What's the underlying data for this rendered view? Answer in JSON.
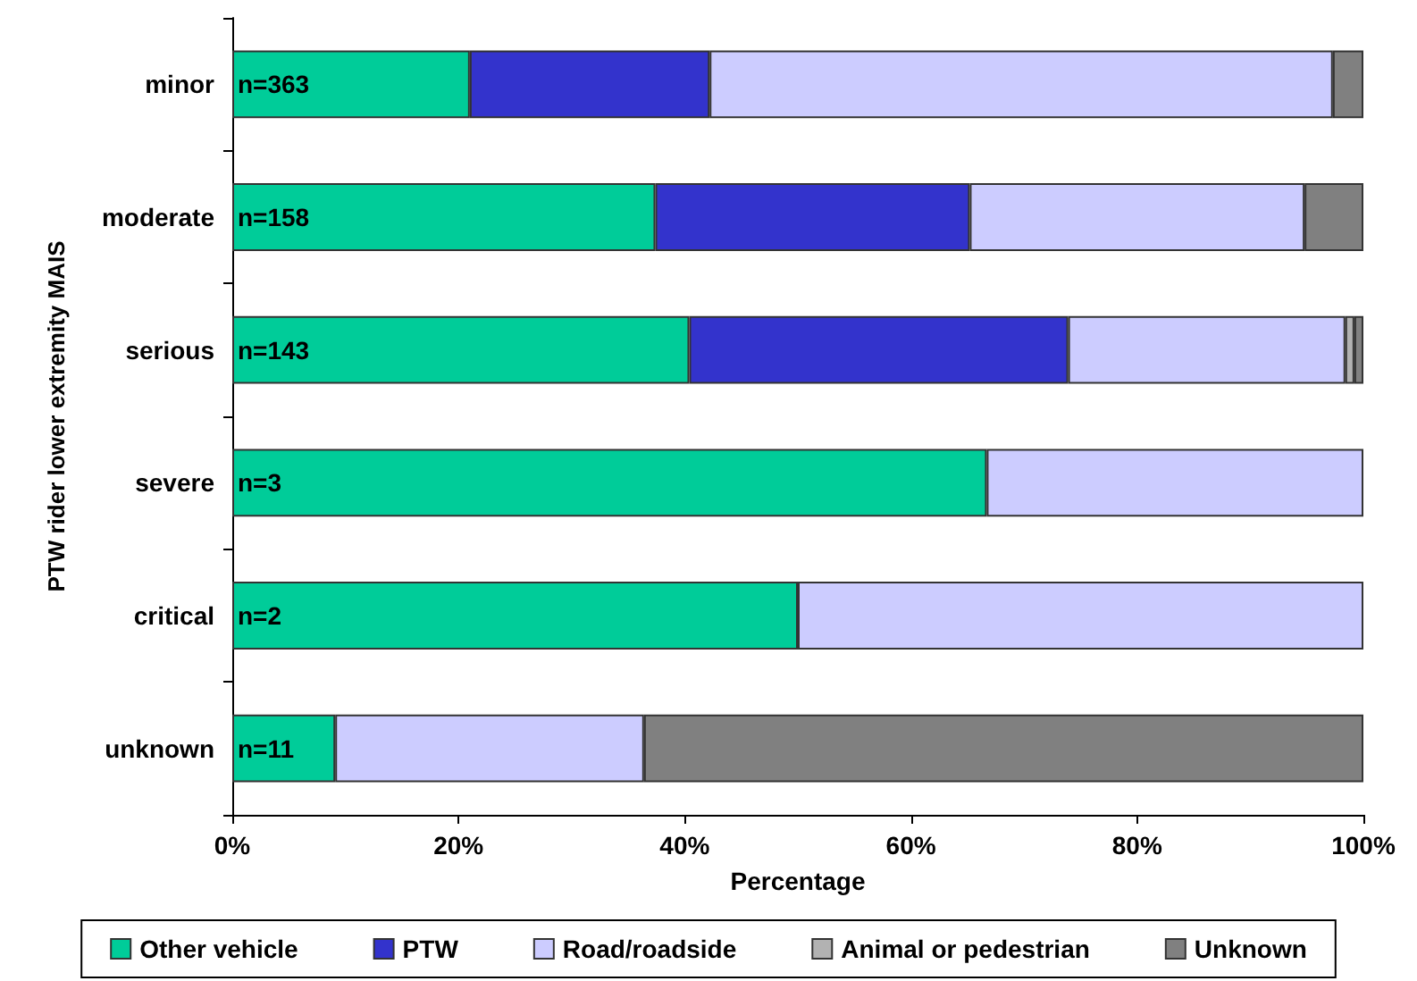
{
  "chart_data": {
    "type": "bar",
    "orientation": "horizontal",
    "stacked": true,
    "xlabel": "Percentage",
    "ylabel": "PTW rider lower extremity MAIS",
    "categories": [
      "minor",
      "moderate",
      "serious",
      "severe",
      "critical",
      "unknown"
    ],
    "series": [
      {
        "name": "Other vehicle",
        "color": "#00cc99",
        "values": [
          21.0,
          37.4,
          40.4,
          66.7,
          50.0,
          9.1
        ]
      },
      {
        "name": "PTW",
        "color": "#3333cc",
        "values": [
          21.2,
          27.8,
          33.5,
          0,
          0,
          0
        ]
      },
      {
        "name": "Road/roadside",
        "color": "#ccccff",
        "values": [
          55.1,
          29.6,
          24.5,
          33.3,
          50.0,
          27.3
        ]
      },
      {
        "name": "Animal or pedestrian",
        "color": "#b2b2b2",
        "values": [
          0,
          0,
          0.8,
          0,
          0,
          0
        ]
      },
      {
        "name": "Unknown",
        "color": "#808080",
        "values": [
          2.7,
          5.2,
          0.8,
          0,
          0,
          63.6
        ]
      }
    ],
    "xlim": [
      0,
      100
    ],
    "xticks": [
      {
        "value": 0,
        "label": "0%"
      },
      {
        "value": 20,
        "label": "20%"
      },
      {
        "value": 40,
        "label": "40%"
      },
      {
        "value": 60,
        "label": "60%"
      },
      {
        "value": 80,
        "label": "80%"
      },
      {
        "value": 100,
        "label": "100%"
      }
    ],
    "annotations": [
      "n=363",
      "n=158",
      "n=143",
      "n=3",
      "n=2",
      "n=11"
    ],
    "grid": false,
    "legend": "bottom"
  }
}
